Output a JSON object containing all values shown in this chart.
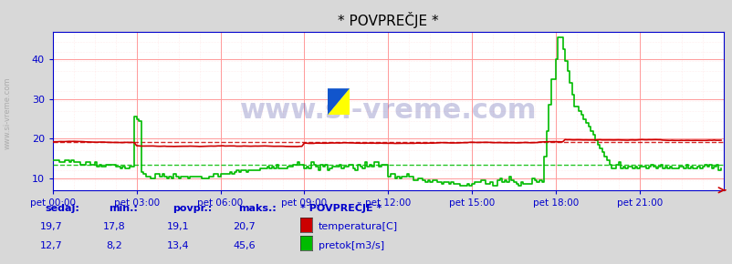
{
  "title": "* POVPREČJE *",
  "bg_color": "#d8d8d8",
  "plot_bg_color": "#ffffff",
  "grid_color_major": "#ff9999",
  "grid_color_minor": "#ffdddd",
  "xlabel_color": "#0000cc",
  "x_ticks_labels": [
    "pet 00:00",
    "pet 03:00",
    "pet 06:00",
    "pet 09:00",
    "pet 12:00",
    "pet 15:00",
    "pet 18:00",
    "pet 21:00"
  ],
  "x_ticks_pos": [
    0,
    36,
    72,
    108,
    144,
    180,
    216,
    252
  ],
  "y_ticks": [
    10,
    20,
    30,
    40
  ],
  "ylim": [
    7,
    47
  ],
  "xlim": [
    0,
    288
  ],
  "temp_color": "#cc0000",
  "flow_color": "#00bb00",
  "avg_temp": 19.1,
  "avg_flow": 13.4,
  "watermark": "www.si-vreme.com",
  "watermark_color": "#1a1a8c",
  "watermark_fontsize": 22,
  "legend_title": "* POVPREČJE *",
  "legend_title_color": "#0000cc",
  "legend_color": "#0000cc",
  "table_headers": [
    "sedaj:",
    "min.:",
    "povpr.:",
    "maks.:"
  ],
  "table_temp": [
    "19,7",
    "17,8",
    "19,1",
    "20,7"
  ],
  "table_flow": [
    "12,7",
    "8,2",
    "13,4",
    "45,6"
  ],
  "label_temp": "temperatura[C]",
  "label_flow": "pretok[m3/s]",
  "n_points": 288
}
